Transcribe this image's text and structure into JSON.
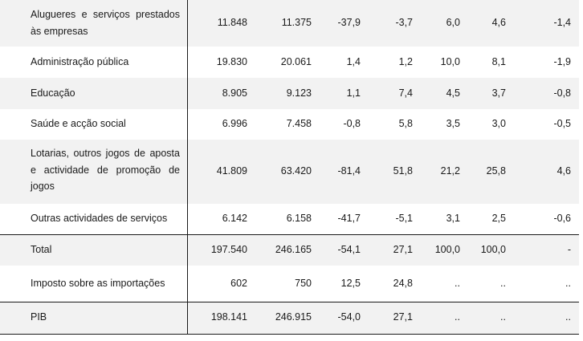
{
  "rows": [
    {
      "label": "Alugueres e serviços prestados às empresas",
      "values": [
        "11.848",
        "11.375",
        "-37,9",
        "-3,7",
        "6,0",
        "4,6",
        "-1,4"
      ]
    },
    {
      "label": "Administração pública",
      "values": [
        "19.830",
        "20.061",
        "1,4",
        "1,2",
        "10,0",
        "8,1",
        "-1,9"
      ]
    },
    {
      "label": "Educação",
      "values": [
        "8.905",
        "9.123",
        "1,1",
        "7,4",
        "4,5",
        "3,7",
        "-0,8"
      ]
    },
    {
      "label": "Saúde e acção social",
      "values": [
        "6.996",
        "7.458",
        "-0,8",
        "5,8",
        "3,5",
        "3,0",
        "-0,5"
      ]
    },
    {
      "label": "Lotarias, outros jogos de aposta e actividade de promoção de jogos",
      "values": [
        "41.809",
        "63.420",
        "-81,4",
        "51,8",
        "21,2",
        "25,8",
        "4,6"
      ]
    },
    {
      "label": "Outras actividades de  serviços",
      "values": [
        "6.142",
        "6.158",
        "-41,7",
        "-5,1",
        "3,1",
        "2,5",
        "-0,6"
      ]
    },
    {
      "label": "Total",
      "values": [
        "197.540",
        "246.165",
        "-54,1",
        "27,1",
        "100,0",
        "100,0",
        "-"
      ]
    },
    {
      "label": "Imposto sobre as importações",
      "values": [
        "602",
        "750",
        "12,5",
        "24,8",
        "..",
        "..",
        ".."
      ]
    },
    {
      "label": "PIB",
      "values": [
        "198.141",
        "246.915",
        "-54,0",
        "27,1",
        "..",
        "..",
        ".."
      ]
    }
  ]
}
